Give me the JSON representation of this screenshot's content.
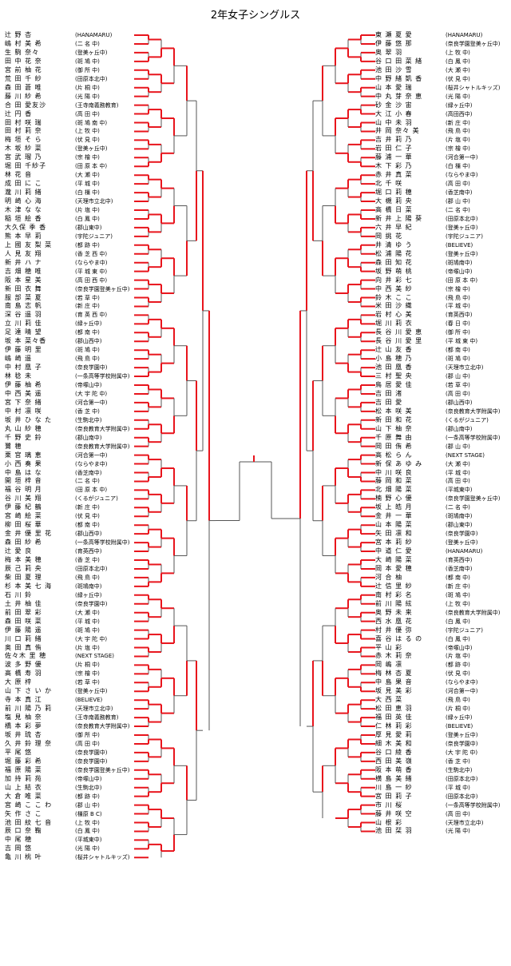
{
  "title": "2年女子シングルス",
  "colors": {
    "winner_line": "#e8141c",
    "line": "#555555",
    "text": "#000000"
  },
  "left": [
    [
      "辻 野 杏",
      "HANAMARU"
    ],
    [
      "嶋 村 美 希",
      "二 名 中"
    ],
    [
      "生 駒 奈々",
      "登美ヶ丘中"
    ],
    [
      "田 中 花 奈",
      "斑 鳩 中"
    ],
    [
      "宮 前 柚 花",
      "御 所 中"
    ],
    [
      "荒 田 千 紗",
      "田原本北中"
    ],
    [
      "森 田 蒼 唯",
      "片 桐 中"
    ],
    [
      "藤 川 紗 希",
      "光 陽 中"
    ],
    [
      "合 田 愛友沙",
      "王寺南義務教育"
    ],
    [
      "辻 円 香",
      "高 田 中"
    ],
    [
      "田 村 咲 瑞",
      "斑 鳩 南 中"
    ],
    [
      "田 村 莉 奈",
      "上 牧 中"
    ],
    [
      "梅 垣 そ ら",
      "伏 見 中"
    ],
    [
      "木 坂 紗 菜",
      "登美ヶ丘中"
    ],
    [
      "宮 武 瑠 乃",
      "宗 檜 中"
    ],
    [
      "堀 田 千紗子",
      "田 原 本 中"
    ],
    [
      "林 花 音",
      "大 瀬 中"
    ],
    [
      "成 田 に こ",
      "平 城 中"
    ],
    [
      "瀧 川 莉 緒",
      "白 橿 中"
    ],
    [
      "明 崎 心 海",
      "天理市立北中"
    ],
    [
      "木 津 な な",
      "片 塩 中"
    ],
    [
      "稲 垣 絵 香",
      "白 鳳 中"
    ],
    [
      "大久保 季 香",
      "郡山東中"
    ],
    [
      "熊 本 早 莉",
      "宇陀ジュニア"
    ],
    [
      "上 國 友 梨 菜",
      "都 跡 中"
    ],
    [
      "人 見 友 翔",
      "香 芝 西 中"
    ],
    [
      "新 井 ハ ナ",
      "ならやま中"
    ],
    [
      "吉 畑 穂 唯",
      "平 城 東 中"
    ],
    [
      "阪 本 星 美",
      "高 田 西 中"
    ],
    [
      "新 田 衣 舞",
      "奈良学園登美ヶ丘中"
    ],
    [
      "服 部 菜 夏",
      "若 草 中"
    ],
    [
      "南 島 志 帆",
      "新 庄 中"
    ],
    [
      "深 谷 遥 羽",
      "育 英 西 中"
    ],
    [
      "立 川 莉 佳",
      "緑ヶ丘中"
    ],
    [
      "足 達 晴 望",
      "都 南 中"
    ],
    [
      "坂 本 菜々香",
      "郡山西中"
    ],
    [
      "伊 藤 明 里",
      "斑 鳩 中"
    ],
    [
      "嶋 崎 遥",
      "飛 鳥 中"
    ],
    [
      "中 村 凰 子",
      "奈良学園中"
    ],
    [
      "林 稔 未",
      "一条高等学校附属中"
    ],
    [
      "伊 藤 柚 希",
      "帝塚山中"
    ],
    [
      "中 西 美 遥",
      "大 宇 陀 中"
    ],
    [
      "宮 下 奈 緒",
      "河合第一中"
    ],
    [
      "中 村 凛 咲",
      "香 芝 中"
    ],
    [
      "坂 井 ひ な た",
      "生駒北中"
    ],
    [
      "丸 山 紗 穂",
      "奈良教育大学附属中"
    ],
    [
      "千 野 史 鈴",
      "郡山南中"
    ],
    [
      "鷺 穂",
      "奈良教育大学附属中"
    ],
    [
      "栗 宮 璃 恵",
      "河合第一中"
    ],
    [
      "小 西 奏 果",
      "ならやま中"
    ],
    [
      "中 島 は な",
      "香芝南中"
    ],
    [
      "開 垣 梓 音",
      "二 名 中"
    ],
    [
      "福 谷 明 月",
      "田 原 本 中"
    ],
    [
      "谷 川 美 翔",
      "くるがジュニア"
    ],
    [
      "伊 藤 紀 鶴",
      "新 庄 中"
    ],
    [
      "宮 崎 絵 菜",
      "伏 見 中"
    ],
    [
      "柳 田 桜 華",
      "都 南 中"
    ],
    [
      "金 井 優 里 花",
      "郡山西中"
    ],
    [
      "森 田 紗 希",
      "一条高等学校附属中"
    ],
    [
      "辻 愛 良",
      "育英西中"
    ],
    [
      "梅 本 美 穂",
      "香 芝 中"
    ],
    [
      "辰 己 莉 央",
      "田原本北中"
    ],
    [
      "柴 田 夏 理",
      "飛 鳥 中"
    ],
    [
      "杉 本 美 七 海",
      "斑鳩南中"
    ],
    [
      "石 川 鈴",
      "緑ヶ丘中"
    ],
    [
      "土 井 柚 佳",
      "奈良学園中"
    ],
    [
      "前 田 翠 彩",
      "大 瀬 中"
    ],
    [
      "森 田 咲 菜",
      "平 城 中"
    ],
    [
      "伊 藤 陽 遥",
      "斑 鳩 中"
    ],
    [
      "川 口 莉 緒",
      "大 宇 陀 中"
    ],
    [
      "奥 田 真 侑",
      "片 塩 中"
    ],
    [
      "佐々木 里 穂",
      "NEXT STAGE"
    ],
    [
      "波 多 野 優",
      "片 桐 中"
    ],
    [
      "高 橋 寿 羽",
      "宗 檜 中"
    ],
    [
      "大 原 梓",
      "若 草 中"
    ],
    [
      "山 下 さ い か",
      "登美ヶ丘中"
    ],
    [
      "寺 本 真 江",
      "BELIEVE"
    ],
    [
      "前 川 陽 乃 莉",
      "天理市立北中"
    ],
    [
      "塩 見 柚 奈",
      "王寺南義務教育"
    ],
    [
      "橋 本 彩 夢",
      "奈良教育大学附属中"
    ],
    [
      "坂 井 琉 杏",
      "御 所 中"
    ],
    [
      "久 井 鈴 理 奈",
      "高 田 中"
    ],
    [
      "平 尾 悠",
      "奈良学園中"
    ],
    [
      "堀 藤 彩 希",
      "奈良学園中"
    ],
    [
      "福 原 陽 菜",
      "奈良学園登美ヶ丘中"
    ],
    [
      "加 持 莉 苑",
      "帝塚山中"
    ],
    [
      "山 上 結 衣",
      "生駒北中"
    ],
    [
      "大 倉 唯 菜",
      "都 跡 中"
    ],
    [
      "宮 崎 こ こ わ",
      "郡 山 中"
    ],
    [
      "矢 作 さ こ",
      "橿原 B C"
    ],
    [
      "池 田 紋 七 音",
      "上 牧 中"
    ],
    [
      "辰 口 奈 鞠",
      "白 鳳 中"
    ],
    [
      "中 尾 穂",
      "平城東中"
    ],
    [
      "吉 岡 悠",
      "光 陽 中"
    ],
    [
      "亀 川 桃 叶",
      "桜井シャトルキッズ"
    ]
  ],
  "right": [
    [
      "東 瀬 夏 愛",
      "HANAMARU"
    ],
    [
      "伊 藤 悠 那",
      "奈良学園登美ヶ丘中"
    ],
    [
      "奥 翠 羽",
      "上 牧 中"
    ],
    [
      "谷 口 田 菜 緒",
      "白 鳳 中"
    ],
    [
      "池 田 沙 雪",
      "大 瀬 中"
    ],
    [
      "中 野 緒 凱 香",
      "伏 見 中"
    ],
    [
      "山 本 愛 瑞",
      "桜井シャトルキッズ"
    ],
    [
      "中 丸 芽 奈 恵",
      "光 陽 中"
    ],
    [
      "砂 金 沙 宙",
      "緑ヶ丘中"
    ],
    [
      "大 江 小 春",
      "高田西中"
    ],
    [
      "山 中 未 羽",
      "新 庄 中"
    ],
    [
      "井 岡 奈々 美",
      "飛 鳥 中"
    ],
    [
      "吉 井 莉 乃",
      "片 塩 中"
    ],
    [
      "岩 田 仁 子",
      "宗 檜 中"
    ],
    [
      "藤 浦 一 華",
      "河合第一中"
    ],
    [
      "木 下 彩 乃",
      "白 橿 中"
    ],
    [
      "赤 井 真 菜",
      "ならやま中"
    ],
    [
      "北 千 咲",
      "高 田 中"
    ],
    [
      "堀 口 莉 穂",
      "香芝南中"
    ],
    [
      "大 槻 莉 央",
      "郡 山 中"
    ],
    [
      "高 橋 日 菜",
      "二 名 中"
    ],
    [
      "新 井 上 陽 葵",
      "田原本北中"
    ],
    [
      "六 井 早 紀",
      "登美ヶ丘中"
    ],
    [
      "岡 挑 花",
      "宇陀ジュニア"
    ],
    [
      "井 清 ゆ う",
      "BELIEVE"
    ],
    [
      "松 浦 陽 花",
      "登美ヶ丘中"
    ],
    [
      "森 田 知 花",
      "斑鳩南中"
    ],
    [
      "坂 野 萌 桃",
      "帝塚山中"
    ],
    [
      "向 井 彩 七",
      "田 原 本 中"
    ],
    [
      "中 西 美 紗",
      "宗 檜 中"
    ],
    [
      "鈴 木 こ こ",
      "飛 鳥 中"
    ],
    [
      "米 田 沙 織",
      "平 城 中"
    ],
    [
      "岩 村 心 美",
      "育英西中"
    ],
    [
      "堀 川 莉 衣",
      "春 日 中"
    ],
    [
      "長 谷 川 愛 恵",
      "御 所 中"
    ],
    [
      "長 谷 川 愛 里",
      "平 城 東 中"
    ],
    [
      "辻 山 友 香",
      "都 南 中"
    ],
    [
      "小 島 穂 乃",
      "斑 鳩 中"
    ],
    [
      "池 田 凰 香",
      "天理市立北中"
    ],
    [
      "三 村 聖 央",
      "郡 山 中"
    ],
    [
      "鳥 居 愛 佳",
      "若 草 中"
    ],
    [
      "吉 田 渚",
      "高 田 中"
    ],
    [
      "吉 田 愛",
      "郡山西中"
    ],
    [
      "松 本 咲 美",
      "奈良教育大学附属中"
    ],
    [
      "新 田 和 花",
      "くるがジュニア"
    ],
    [
      "山 下 柚 奈",
      "郡山南中"
    ],
    [
      "千 原 舞 由",
      "一条高等学校附属中"
    ],
    [
      "岡 田 侑 希",
      "郡 山 中"
    ],
    [
      "高 松 ら ん",
      "NEXT STAGE"
    ],
    [
      "新 保 あ ゆ み",
      "大 瀬 中"
    ],
    [
      "中 川 咲 良",
      "平 城 中"
    ],
    [
      "藤 岡 和 菜",
      "高 田 中"
    ],
    [
      "北 畑 陽 菜",
      "平城東中"
    ],
    [
      "楠 野 心 優",
      "奈良学園登美ヶ丘中"
    ],
    [
      "坂 上 皓 月",
      "二 名 中"
    ],
    [
      "金 井 一 華",
      "斑鳩南中"
    ],
    [
      "山 本 陽 菜",
      "郡山東中"
    ],
    [
      "矢 田 凛 和",
      "奈良学園中"
    ],
    [
      "宮 本 莉 紗",
      "登美ヶ丘中"
    ],
    [
      "中 道 仁 愛",
      "HANAMARU"
    ],
    [
      "大 崎 陽 菜",
      "育英西中"
    ],
    [
      "岡 本 愛 穂",
      "香芝南中"
    ],
    [
      "河 合 柚",
      "都 南 中"
    ],
    [
      "辻 信 里 紗",
      "新 庄 中"
    ],
    [
      "南 村 彩 名",
      "斑 鳩 中"
    ],
    [
      "前 川 陽 絃",
      "上 牧 中"
    ],
    [
      "奥 野 未 来",
      "奈良教育大学附属中"
    ],
    [
      "西 水 凰 花",
      "白 鳳 中"
    ],
    [
      "村 井 優 弥",
      "宇陀ジュニア"
    ],
    [
      "喜 谷 は る の",
      "白 鳳 中"
    ],
    [
      "平 山 彩",
      "帝塚山中"
    ],
    [
      "赤 木 莉 奈",
      "片 塩 中"
    ],
    [
      "岡 嶋 凛",
      "都 跡 中"
    ],
    [
      "梅 林 杏 夏",
      "伏 見 中"
    ],
    [
      "中 島 果 音",
      "ならやま中"
    ],
    [
      "坂 見 美 彩",
      "河合第一中"
    ],
    [
      "大 西 菜",
      "飛 鳥 中"
    ],
    [
      "松 田 恵 羽",
      "片 桐 中"
    ],
    [
      "福 田 英 佳",
      "緑ヶ丘中"
    ],
    [
      "仁 林 莉 彩",
      "BELIEVE"
    ],
    [
      "厚 見 愛 莉",
      "登美ヶ丘中"
    ],
    [
      "細 木 美 和",
      "奈良学園中"
    ],
    [
      "谷 口 綾 香",
      "大 宇 陀 中"
    ],
    [
      "西 田 美 嶺",
      "香 芝 中"
    ],
    [
      "阪 本 萌 香",
      "生駒北中"
    ],
    [
      "横 島 美 緒",
      "田原本北中"
    ],
    [
      "川 島 一 紗",
      "平 城 中"
    ],
    [
      "宮 田 莉 子",
      "田原本北中"
    ],
    [
      "市 川 桜",
      "一条高等学校附属中"
    ],
    [
      "藤 井 咲 空",
      "高 田 中"
    ],
    [
      "山 根 彩",
      "天理市立北中"
    ],
    [
      "池 田 栞 羽",
      "光 陽 中"
    ]
  ]
}
